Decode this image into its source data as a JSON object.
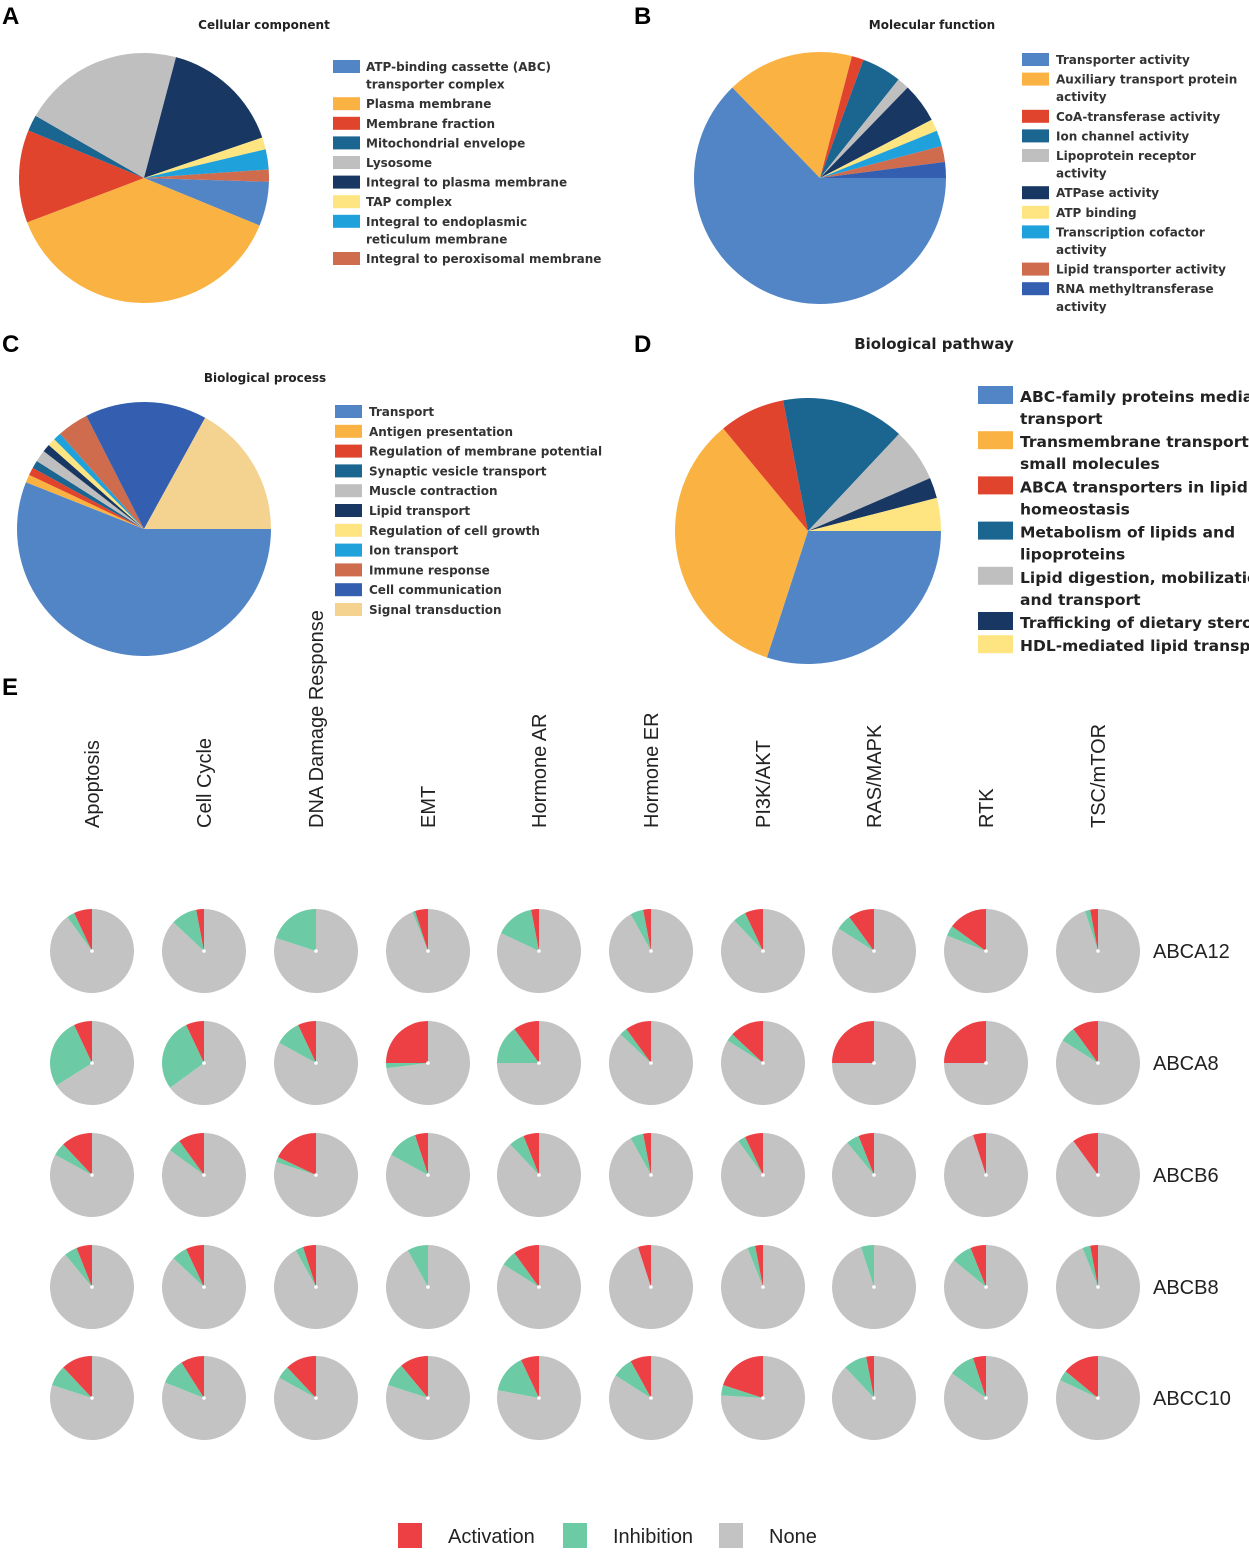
{
  "colors": {
    "activation": "#ec4045",
    "inhibition": "#6ccaa4",
    "none": "#c3c3c3"
  },
  "chart_data": [
    {
      "panel": "A",
      "type": "pie",
      "title": "Cellular component",
      "slices": [
        {
          "label": "ATP-binding cassette (ABC) transporter complex",
          "value": 5.5,
          "color": "#5285c6"
        },
        {
          "label": "Plasma membrane",
          "value": 36.5,
          "color": "#fab342"
        },
        {
          "label": "Membrane fraction",
          "value": 11.5,
          "color": "#e0442d"
        },
        {
          "label": "Mitochondrial envelope",
          "value": 2.0,
          "color": "#1b6591"
        },
        {
          "label": "Lysosome",
          "value": 20.0,
          "color": "#bfbfbf"
        },
        {
          "label": "Integral to plasma membrane",
          "value": 15.0,
          "color": "#183763"
        },
        {
          "label": "TAP complex",
          "value": 1.5,
          "color": "#fee581"
        },
        {
          "label": "Integral to endoplasmic reticulum membrane",
          "value": 2.5,
          "color": "#1fa1db"
        },
        {
          "label": "Integral to peroxisomal membrane",
          "value": 1.5,
          "color": "#cf6c4d"
        }
      ]
    },
    {
      "panel": "B",
      "type": "pie",
      "title": "Molecular function",
      "slices": [
        {
          "label": "Transporter activity",
          "value": 61.5,
          "color": "#5285c6"
        },
        {
          "label": "Auxiliary transport protein activity",
          "value": 16.0,
          "color": "#fab342"
        },
        {
          "label": "CoA-transferase activity",
          "value": 1.5,
          "color": "#e0442d"
        },
        {
          "label": "Ion channel activity",
          "value": 5.0,
          "color": "#1b6591"
        },
        {
          "label": "Lipoprotein receptor activity",
          "value": 1.5,
          "color": "#bfbfbf"
        },
        {
          "label": "ATPase activity",
          "value": 5.0,
          "color": "#183763"
        },
        {
          "label": "ATP binding",
          "value": 1.5,
          "color": "#fee581"
        },
        {
          "label": "Transcription cofactor activity",
          "value": 2.0,
          "color": "#1fa1db"
        },
        {
          "label": "Lipid transporter activity",
          "value": 2.0,
          "color": "#cf6c4d"
        },
        {
          "label": "RNA methyltransferase activity",
          "value": 2.0,
          "color": "#345fb0"
        }
      ]
    },
    {
      "panel": "C",
      "type": "pie",
      "title": "Biological process",
      "slices": [
        {
          "label": "Transport",
          "value": 56.0,
          "color": "#5285c6"
        },
        {
          "label": "Antigen presentation",
          "value": 1.0,
          "color": "#fab342"
        },
        {
          "label": "Regulation of membrane potential",
          "value": 1.0,
          "color": "#e0442d"
        },
        {
          "label": "Synaptic vesicle transport",
          "value": 1.0,
          "color": "#1b6591"
        },
        {
          "label": "Muscle contraction",
          "value": 1.5,
          "color": "#bfbfbf"
        },
        {
          "label": "Lipid transport",
          "value": 1.0,
          "color": "#183763"
        },
        {
          "label": "Regulation of cell growth",
          "value": 1.0,
          "color": "#fee581"
        },
        {
          "label": "Ion transport",
          "value": 1.0,
          "color": "#1fa1db"
        },
        {
          "label": "Immune response",
          "value": 4.0,
          "color": "#cf6c4d"
        },
        {
          "label": "Cell communication",
          "value": 15.5,
          "color": "#345fb0"
        },
        {
          "label": "Signal transduction",
          "value": 17.0,
          "color": "#f4d28f"
        }
      ]
    },
    {
      "panel": "D",
      "type": "pie",
      "title": "Biological pathway",
      "slices": [
        {
          "label": "ABC-family proteins mediated transport",
          "value": 30.0,
          "color": "#5285c6"
        },
        {
          "label": "Transmembrane transport of small molecules",
          "value": 34.0,
          "color": "#fab342"
        },
        {
          "label": "ABCA transporters in lipid homeostasis",
          "value": 8.0,
          "color": "#e0442d"
        },
        {
          "label": "Metabolism of lipids and lipoproteins",
          "value": 15.0,
          "color": "#1b6591"
        },
        {
          "label": "Lipid digestion, mobilization, and transport",
          "value": 6.5,
          "color": "#bfbfbf"
        },
        {
          "label": "Trafficking of dietary sterols",
          "value": 2.5,
          "color": "#183763"
        },
        {
          "label": "HDL-mediated lipid transport",
          "value": 4.0,
          "color": "#fee581"
        }
      ]
    },
    {
      "panel": "E",
      "type": "pie",
      "title": "",
      "columns": [
        "Apoptosis",
        "Cell Cycle",
        "DNA Damage Response",
        "EMT",
        "Hormone AR",
        "Hormone ER",
        "PI3K/AKT",
        "RAS/MAPK",
        "RTK",
        "TSC/mTOR"
      ],
      "rows": [
        "ABCA12",
        "ABCA8",
        "ABCB6",
        "ABCB8",
        "ABCC10"
      ],
      "legend": [
        "Activation",
        "Inhibition",
        "None"
      ],
      "activation": [
        [
          7,
          3,
          0,
          5,
          3,
          3,
          7,
          10,
          15,
          3
        ],
        [
          7,
          7,
          7,
          25,
          10,
          10,
          13,
          25,
          25,
          10
        ],
        [
          12,
          10,
          18,
          5,
          6,
          3,
          7,
          6,
          5,
          10
        ],
        [
          6,
          7,
          5,
          0,
          10,
          5,
          3,
          0,
          6,
          3
        ],
        [
          12,
          9,
          12,
          11,
          7,
          8,
          20,
          3,
          5,
          14
        ]
      ],
      "inhibition": [
        [
          3,
          10,
          20,
          1,
          15,
          5,
          5,
          6,
          4,
          2
        ],
        [
          27,
          28,
          10,
          2,
          15,
          3,
          3,
          0,
          0,
          6
        ],
        [
          5,
          5,
          2,
          12,
          6,
          5,
          3,
          5,
          0,
          0
        ],
        [
          5,
          6,
          3,
          8,
          6,
          0,
          3,
          5,
          8,
          3
        ],
        [
          8,
          10,
          5,
          9,
          15,
          8,
          4,
          9,
          10,
          4
        ]
      ]
    }
  ]
}
